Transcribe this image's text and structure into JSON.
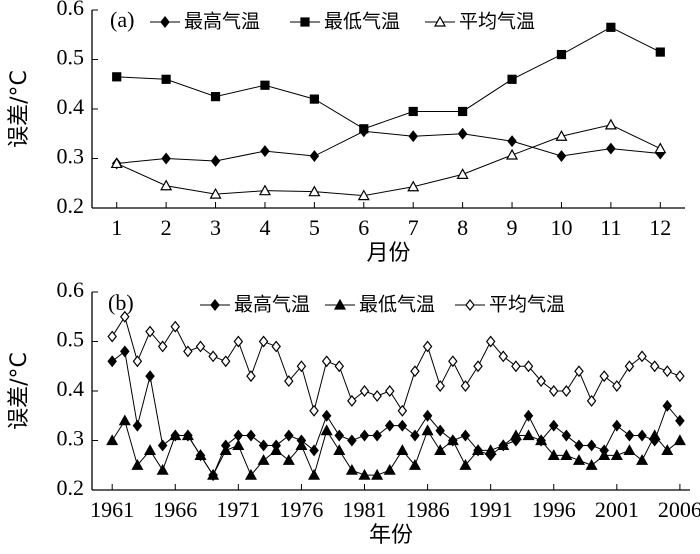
{
  "chart_data": [
    {
      "type": "line",
      "label": "(a)",
      "xlabel": "月份",
      "ylabel": "误差/°C",
      "x": [
        1,
        2,
        3,
        4,
        5,
        6,
        7,
        8,
        9,
        10,
        11,
        12
      ],
      "xlim": [
        0.5,
        12.5
      ],
      "xticks": [
        1,
        2,
        3,
        4,
        5,
        6,
        7,
        8,
        9,
        10,
        11,
        12
      ],
      "ylim": [
        0.2,
        0.6
      ],
      "yticks": [
        0.2,
        0.3,
        0.4,
        0.5,
        0.6
      ],
      "series": [
        {
          "name": "最高气温",
          "color": "#000000",
          "marker": "diamond",
          "values": [
            0.29,
            0.3,
            0.295,
            0.315,
            0.305,
            0.355,
            0.345,
            0.35,
            0.335,
            0.305,
            0.32,
            0.31
          ]
        },
        {
          "name": "最低气温",
          "color": "#000000",
          "marker": "square",
          "values": [
            0.465,
            0.46,
            0.425,
            0.448,
            0.42,
            0.36,
            0.395,
            0.395,
            0.46,
            0.51,
            0.565,
            0.515
          ]
        },
        {
          "name": "平均气温",
          "color": "#000000",
          "marker": "triangle-open",
          "values": [
            0.29,
            0.245,
            0.228,
            0.235,
            0.233,
            0.225,
            0.243,
            0.268,
            0.307,
            0.345,
            0.368,
            0.32
          ]
        }
      ]
    },
    {
      "type": "line",
      "label": "(b)",
      "xlabel": "年份",
      "ylabel": "误差/°C",
      "x": [
        1961,
        1962,
        1963,
        1964,
        1965,
        1966,
        1967,
        1968,
        1969,
        1970,
        1971,
        1972,
        1973,
        1974,
        1975,
        1976,
        1977,
        1978,
        1979,
        1980,
        1981,
        1982,
        1983,
        1984,
        1985,
        1986,
        1987,
        1988,
        1989,
        1990,
        1991,
        1992,
        1993,
        1994,
        1995,
        1996,
        1997,
        1998,
        1999,
        2000,
        2001,
        2002,
        2003,
        2004,
        2005,
        2006
      ],
      "xlim": [
        1959.4,
        2006.8
      ],
      "xticks": [
        1961,
        1966,
        1971,
        1976,
        1981,
        1986,
        1991,
        1996,
        2001,
        2006
      ],
      "ylim": [
        0.2,
        0.6
      ],
      "yticks": [
        0.2,
        0.3,
        0.4,
        0.5,
        0.6
      ],
      "series": [
        {
          "name": "最高气温",
          "color": "#000000",
          "marker": "diamond",
          "values": [
            0.46,
            0.48,
            0.33,
            0.43,
            0.29,
            0.31,
            0.31,
            0.27,
            0.23,
            0.29,
            0.31,
            0.31,
            0.29,
            0.29,
            0.31,
            0.3,
            0.28,
            0.35,
            0.31,
            0.3,
            0.31,
            0.31,
            0.33,
            0.33,
            0.31,
            0.35,
            0.32,
            0.3,
            0.31,
            0.28,
            0.27,
            0.29,
            0.3,
            0.35,
            0.3,
            0.33,
            0.31,
            0.29,
            0.29,
            0.28,
            0.33,
            0.31,
            0.31,
            0.3,
            0.37,
            0.34
          ]
        },
        {
          "name": "最低气温",
          "color": "#000000",
          "marker": "triangle",
          "values": [
            0.3,
            0.34,
            0.25,
            0.28,
            0.24,
            0.31,
            0.31,
            0.27,
            0.23,
            0.28,
            0.29,
            0.23,
            0.26,
            0.28,
            0.26,
            0.29,
            0.23,
            0.32,
            0.28,
            0.24,
            0.23,
            0.23,
            0.24,
            0.28,
            0.25,
            0.32,
            0.28,
            0.3,
            0.25,
            0.28,
            0.28,
            0.29,
            0.31,
            0.31,
            0.3,
            0.27,
            0.27,
            0.26,
            0.25,
            0.27,
            0.27,
            0.28,
            0.26,
            0.31,
            0.28,
            0.3
          ]
        },
        {
          "name": "平均气温",
          "color": "#000000",
          "marker": "diamond-open",
          "values": [
            0.51,
            0.55,
            0.46,
            0.52,
            0.49,
            0.53,
            0.48,
            0.49,
            0.47,
            0.46,
            0.5,
            0.43,
            0.5,
            0.49,
            0.42,
            0.45,
            0.36,
            0.46,
            0.45,
            0.38,
            0.4,
            0.39,
            0.4,
            0.36,
            0.44,
            0.49,
            0.41,
            0.46,
            0.41,
            0.45,
            0.5,
            0.47,
            0.45,
            0.45,
            0.42,
            0.4,
            0.4,
            0.44,
            0.38,
            0.43,
            0.41,
            0.45,
            0.47,
            0.45,
            0.44,
            0.43
          ]
        }
      ]
    }
  ]
}
